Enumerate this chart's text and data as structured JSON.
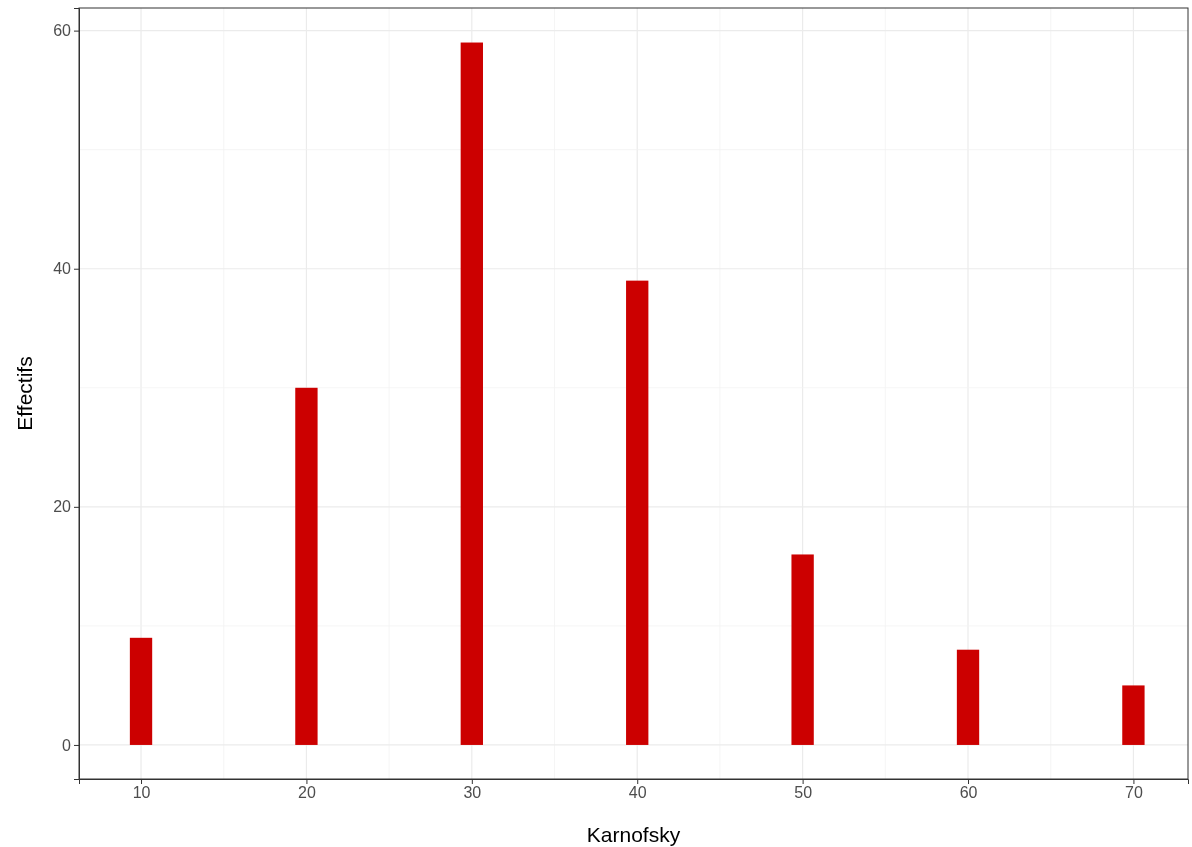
{
  "chart_data": {
    "type": "bar",
    "xlabel": "Karnofsky",
    "ylabel": "Effectifs",
    "x": [
      10,
      20,
      30,
      40,
      50,
      60,
      70
    ],
    "values": [
      9,
      30,
      59,
      39,
      16,
      8,
      5
    ],
    "color": "#cc0000",
    "xlim": [
      6.25,
      73.3
    ],
    "xticks": [
      10,
      20,
      30,
      40,
      50,
      60,
      70
    ],
    "ylim": [
      -2.86,
      61.9
    ],
    "yticks": [
      0,
      20,
      40,
      60
    ],
    "grid": true
  }
}
